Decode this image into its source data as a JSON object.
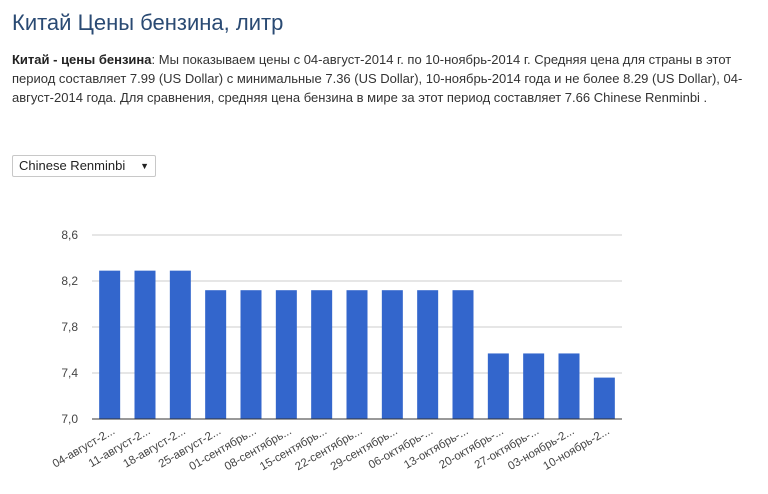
{
  "page": {
    "title": "Китай Цены бензина, литр",
    "desc_bold": "Китай - цены бензина",
    "desc_text": ": Мы показываем цены с 04-август-2014 г. по 10-ноябрь-2014 г. Средняя цена для страны в этот период составляет 7.99 (US Dollar) с минимальные 7.36 (US Dollar), 10-ноябрь-2014 года и не более 8.29 (US Dollar), 04-август-2014 года. Для сравнения, средняя цена бензина в мире за этот период составляет 7.66 Chinese Renminbi ."
  },
  "currency_select": {
    "value": "Chinese Renminbi",
    "arrow_icon": "triangle-down-icon"
  },
  "chart_data": {
    "type": "bar",
    "title": "",
    "xlabel": "",
    "ylabel": "",
    "ylim": [
      7.0,
      8.6
    ],
    "yticks": [
      "8,6",
      "8,2",
      "7,8",
      "7,4",
      "7,0"
    ],
    "ytick_values": [
      8.6,
      8.2,
      7.8,
      7.4,
      7.0
    ],
    "grid": true,
    "legend": "none",
    "bar_color": "#3366cc",
    "categories": [
      "04-август-2...",
      "11-август-2...",
      "18-август-2...",
      "25-август-2...",
      "01-сентябрь...",
      "08-сентябрь...",
      "15-сентябрь...",
      "22-сентябрь...",
      "29-сентябрь...",
      "06-октябрь-...",
      "13-октябрь-...",
      "20-октябрь-...",
      "27-октябрь-...",
      "03-ноябрь-2...",
      "10-ноябрь-2..."
    ],
    "values": [
      8.29,
      8.29,
      8.29,
      8.12,
      8.12,
      8.12,
      8.12,
      8.12,
      8.12,
      8.12,
      8.12,
      7.57,
      7.57,
      7.57,
      7.36
    ]
  }
}
